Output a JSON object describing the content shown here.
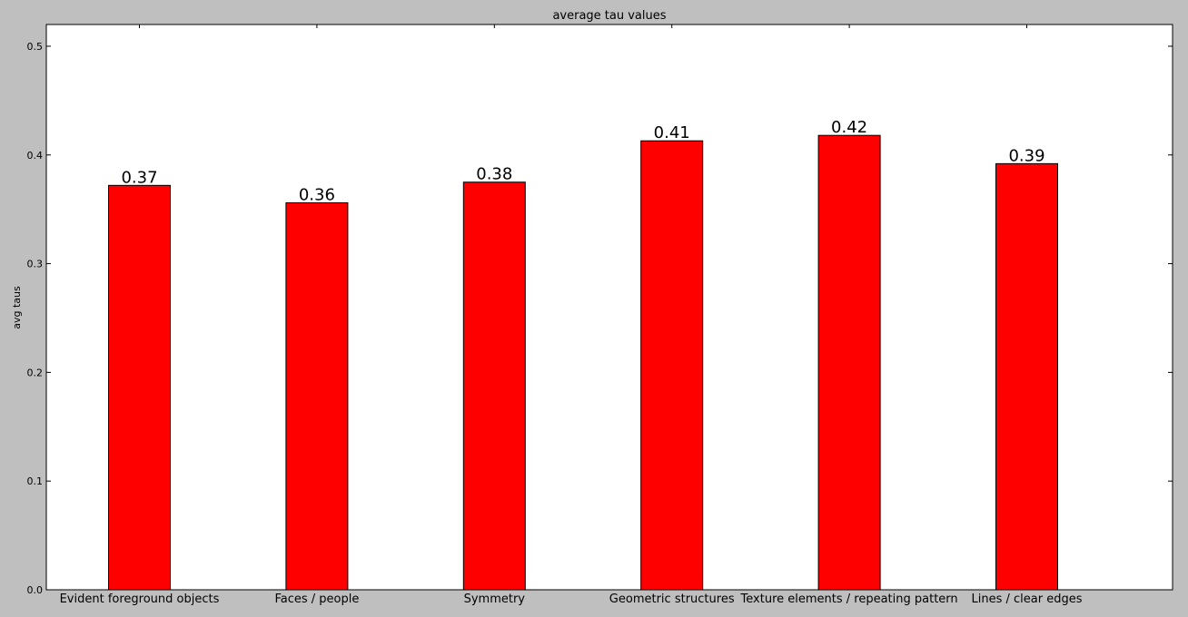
{
  "chart_data": {
    "type": "bar",
    "title": "average tau values",
    "xlabel": "",
    "ylabel": "avg taus",
    "categories": [
      "Evident foreground objects",
      "Faces / people",
      "Symmetry",
      "Geometric structures",
      "Texture elements / repeating pattern",
      "Lines / clear edges"
    ],
    "values": [
      0.372,
      0.356,
      0.375,
      0.413,
      0.418,
      0.392
    ],
    "value_labels": [
      "0.37",
      "0.36",
      "0.38",
      "0.41",
      "0.42",
      "0.39"
    ],
    "ylim": [
      0,
      0.52
    ],
    "yticks": [
      "0.0",
      "0.1",
      "0.2",
      "0.3",
      "0.4",
      "0.5"
    ],
    "bar_color": "#ff0000",
    "background": "#bfbfbf",
    "grid": false
  }
}
